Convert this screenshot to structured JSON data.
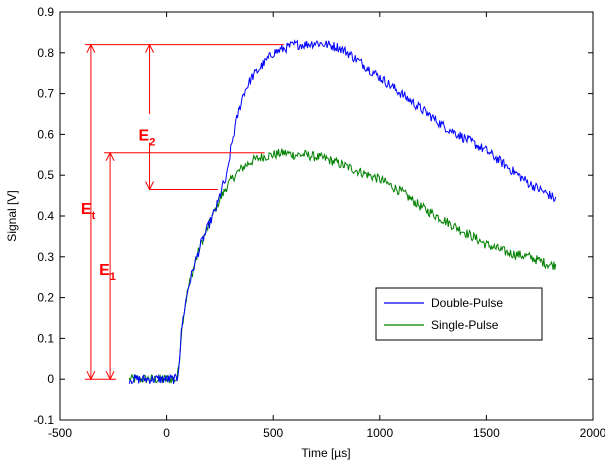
{
  "chart_data": {
    "type": "line",
    "xlabel": "Time [µs]",
    "ylabel": "Signal [V]",
    "xlim": [
      -500,
      2000
    ],
    "ylim": [
      -0.1,
      0.9
    ],
    "xticks": [
      -500,
      0,
      500,
      1000,
      1500,
      2000
    ],
    "yticks": [
      -0.1,
      0,
      0.1,
      0.2,
      0.3,
      0.4,
      0.5,
      0.6,
      0.7,
      0.8,
      0.9
    ],
    "grid": false,
    "legend_position": "lower-right",
    "series": [
      {
        "name": "Double-Pulse",
        "color": "#0000ff",
        "x": [
          -175,
          -100,
          0,
          50,
          60,
          70,
          80,
          100,
          130,
          160,
          200,
          240,
          260,
          280,
          290,
          300,
          330,
          360,
          400,
          450,
          500,
          550,
          600,
          650,
          700,
          750,
          800,
          850,
          900,
          950,
          1000,
          1100,
          1200,
          1300,
          1400,
          1500,
          1600,
          1700,
          1800,
          1825
        ],
        "y": [
          0.0,
          0.0,
          0.0,
          0.0,
          0.05,
          0.12,
          0.16,
          0.22,
          0.28,
          0.33,
          0.38,
          0.43,
          0.47,
          0.49,
          0.52,
          0.56,
          0.64,
          0.7,
          0.74,
          0.77,
          0.8,
          0.81,
          0.82,
          0.82,
          0.825,
          0.82,
          0.815,
          0.8,
          0.78,
          0.76,
          0.74,
          0.7,
          0.66,
          0.62,
          0.59,
          0.56,
          0.52,
          0.48,
          0.45,
          0.44
        ]
      },
      {
        "name": "Single-Pulse",
        "color": "#008000",
        "x": [
          -175,
          -100,
          0,
          50,
          60,
          70,
          80,
          100,
          130,
          160,
          200,
          240,
          280,
          320,
          360,
          400,
          450,
          500,
          550,
          600,
          650,
          700,
          750,
          800,
          850,
          900,
          950,
          1000,
          1100,
          1200,
          1300,
          1400,
          1500,
          1600,
          1700,
          1800,
          1825
        ],
        "y": [
          0.0,
          0.0,
          0.0,
          0.0,
          0.05,
          0.12,
          0.16,
          0.22,
          0.28,
          0.33,
          0.38,
          0.43,
          0.47,
          0.5,
          0.52,
          0.535,
          0.545,
          0.55,
          0.555,
          0.55,
          0.55,
          0.545,
          0.54,
          0.53,
          0.52,
          0.51,
          0.5,
          0.49,
          0.46,
          0.42,
          0.39,
          0.36,
          0.33,
          0.31,
          0.3,
          0.28,
          0.28
        ]
      }
    ],
    "annotations": [
      {
        "text": "E",
        "sub": "2",
        "color": "#ff0000"
      },
      {
        "text": "E",
        "sub": "t",
        "color": "#ff0000"
      },
      {
        "text": "E",
        "sub": "1",
        "color": "#ff0000"
      }
    ]
  }
}
